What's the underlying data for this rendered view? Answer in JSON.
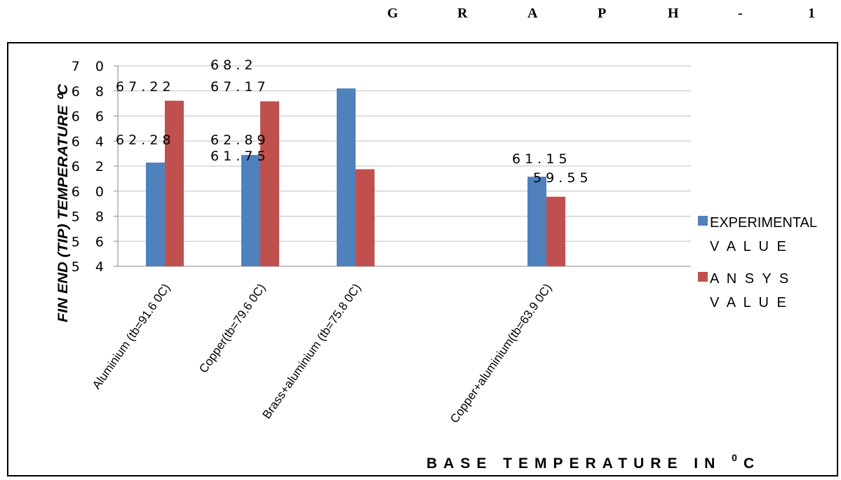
{
  "title": "GRAPH-1",
  "chart_data": {
    "type": "bar",
    "categories": [
      "Aluminium (tb=91.6 0C)",
      "Copper(tb=79.6 0C)",
      "Brass+aluminium (tb=75.8 0C)",
      "Copper+aluminium(tb=63.9 0C)"
    ],
    "series": [
      {
        "name": "EXPERIMENTAL VALUE",
        "color": "#4f81bd",
        "values": [
          62.28,
          62.89,
          68.2,
          61.15
        ]
      },
      {
        "name": "ANSYS VALUE",
        "color": "#c0504d",
        "values": [
          67.22,
          67.17,
          61.75,
          59.55
        ]
      }
    ],
    "data_labels": {
      "series_0": [
        "62.28",
        "62.89",
        "68.2",
        "61.15"
      ],
      "series_1": [
        "67.22",
        "67.17",
        "61.75",
        "59.55"
      ]
    },
    "ylabel": "FIN END (TIP) TEMPERATURE 0C",
    "xlabel": "BASE TEMPERATURE IN 0C",
    "yticks": [
      "54",
      "56",
      "58",
      "60",
      "62",
      "64",
      "66",
      "68",
      "70"
    ],
    "ylim": [
      54,
      70
    ],
    "grid": true,
    "legend_position": "right"
  }
}
